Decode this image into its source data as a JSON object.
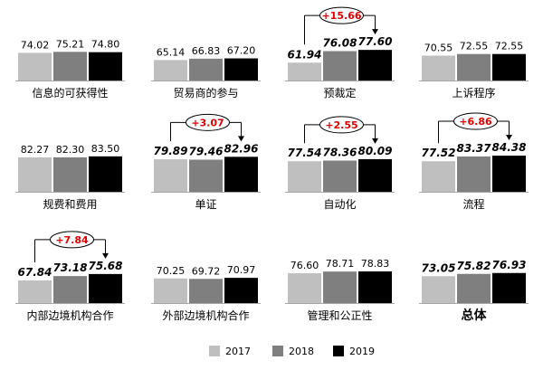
{
  "colors": {
    "y2017": "#BFBFBF",
    "y2018": "#7F7F7F",
    "y2019": "#000000",
    "highlight": "#E00000",
    "axis": "#A6A6A6",
    "text": "#000000",
    "background": "#FFFFFF"
  },
  "chart_data": {
    "type": "bar",
    "title": "",
    "legend_position": "bottom-right",
    "series_names": [
      "2017",
      "2018",
      "2019"
    ],
    "ylim": [
      40,
      90
    ],
    "panels": [
      {
        "label": "信息的可获得性",
        "values": [
          74.02,
          75.21,
          74.8
        ],
        "value_labels": [
          "74.02",
          "75.21",
          "74.80"
        ],
        "bold": false,
        "delta": null
      },
      {
        "label": "贸易商的参与",
        "values": [
          65.14,
          66.83,
          67.2
        ],
        "value_labels": [
          "65.14",
          "66.83",
          "67.20"
        ],
        "bold": false,
        "delta": null
      },
      {
        "label": "预裁定",
        "values": [
          61.94,
          76.08,
          77.6
        ],
        "value_labels": [
          "61.94",
          "76.08",
          "77.60"
        ],
        "bold": true,
        "delta": "+15.66"
      },
      {
        "label": "上诉程序",
        "values": [
          70.55,
          72.55,
          72.55
        ],
        "value_labels": [
          "70.55",
          "72.55",
          "72.55"
        ],
        "bold": false,
        "delta": null
      },
      {
        "label": "规费和费用",
        "values": [
          82.27,
          82.3,
          83.5
        ],
        "value_labels": [
          "82.27",
          "82.30",
          "83.50"
        ],
        "bold": false,
        "delta": null
      },
      {
        "label": "单证",
        "values": [
          79.89,
          79.46,
          82.96
        ],
        "value_labels": [
          "79.89",
          "79.46",
          "82.96"
        ],
        "bold": true,
        "delta": "+3.07"
      },
      {
        "label": "自动化",
        "values": [
          77.54,
          78.36,
          80.09
        ],
        "value_labels": [
          "77.54",
          "78.36",
          "80.09"
        ],
        "bold": true,
        "delta": "+2.55"
      },
      {
        "label": "流程",
        "values": [
          77.52,
          83.37,
          84.38
        ],
        "value_labels": [
          "77.52",
          "83.37",
          "84.38"
        ],
        "bold": true,
        "delta": "+6.86"
      },
      {
        "label": "内部边境机构合作",
        "values": [
          67.84,
          73.18,
          75.68
        ],
        "value_labels": [
          "67.84",
          "73.18",
          "75.68"
        ],
        "bold": true,
        "delta": "+7.84"
      },
      {
        "label": "外部边境机构合作",
        "values": [
          70.25,
          69.72,
          70.97
        ],
        "value_labels": [
          "70.25",
          "69.72",
          "70.97"
        ],
        "bold": false,
        "delta": null
      },
      {
        "label": "管理和公正性",
        "values": [
          76.6,
          78.71,
          78.83
        ],
        "value_labels": [
          "76.60",
          "78.71",
          "78.83"
        ],
        "bold": false,
        "delta": null
      },
      {
        "label": "总体",
        "values": [
          73.05,
          75.82,
          76.93
        ],
        "value_labels": [
          "73.05",
          "75.82",
          "76.93"
        ],
        "bold": true,
        "delta": null,
        "label_emphasis": true
      }
    ]
  }
}
